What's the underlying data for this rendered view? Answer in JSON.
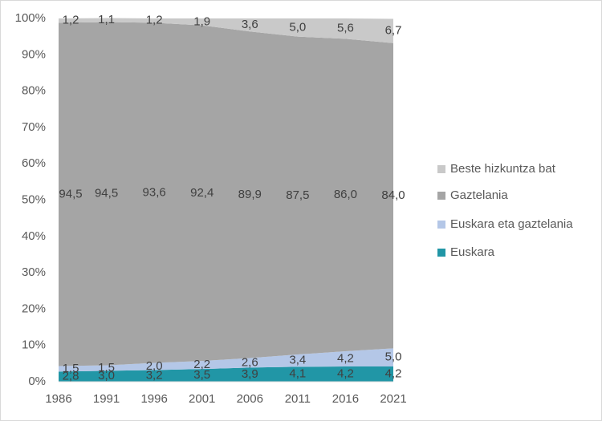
{
  "chart_data": {
    "type": "stacked-area",
    "categories": [
      "1986",
      "1991",
      "1996",
      "2001",
      "2006",
      "2011",
      "2016",
      "2021"
    ],
    "series": [
      {
        "name": "Euskara",
        "color": "#2196a6",
        "values": [
          2.8,
          3.0,
          3.2,
          3.5,
          3.9,
          4.1,
          4.2,
          4.2
        ],
        "value_labels": [
          "2,8",
          "3,0",
          "3,2",
          "3,5",
          "3,9",
          "4,1",
          "4,2",
          "4,2"
        ]
      },
      {
        "name": "Euskara eta gaztelania",
        "color": "#b4c7e7",
        "values": [
          1.5,
          1.5,
          2.0,
          2.2,
          2.6,
          3.4,
          4.2,
          5.0
        ],
        "value_labels": [
          "1,5",
          "1,5",
          "2,0",
          "2,2",
          "2,6",
          "3,4",
          "4,2",
          "5,0"
        ]
      },
      {
        "name": "Gaztelania",
        "color": "#a5a5a5",
        "values": [
          94.5,
          94.5,
          93.6,
          92.4,
          89.9,
          87.5,
          86.0,
          84.0
        ],
        "value_labels": [
          "94,5",
          "94,5",
          "93,6",
          "92,4",
          "89,9",
          "87,5",
          "86,0",
          "84,0"
        ]
      },
      {
        "name": "Beste hizkuntza bat",
        "color": "#c9c9c9",
        "values": [
          1.2,
          1.1,
          1.2,
          1.9,
          3.6,
          5.0,
          5.6,
          6.7
        ],
        "value_labels": [
          "1,2",
          "1,1",
          "1,2",
          "1,9",
          "3,6",
          "5,0",
          "5,6",
          "6,7"
        ]
      }
    ],
    "ylim": [
      0,
      100
    ],
    "yticks": [
      {
        "value": 0,
        "label": "0%"
      },
      {
        "value": 10,
        "label": "10%"
      },
      {
        "value": 20,
        "label": "20%"
      },
      {
        "value": 30,
        "label": "30%"
      },
      {
        "value": 40,
        "label": "40%"
      },
      {
        "value": 50,
        "label": "50%"
      },
      {
        "value": 60,
        "label": "60%"
      },
      {
        "value": 70,
        "label": "70%"
      },
      {
        "value": 80,
        "label": "80%"
      },
      {
        "value": 90,
        "label": "90%"
      },
      {
        "value": 100,
        "label": "100%"
      }
    ],
    "grid": false,
    "legend": "right"
  }
}
